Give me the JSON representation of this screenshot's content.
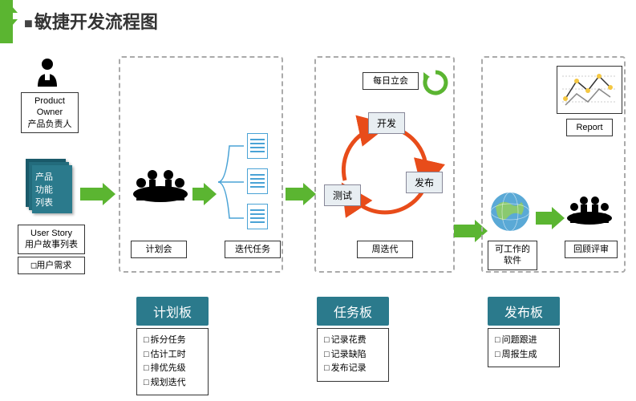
{
  "title": "敏捷开发流程图",
  "colors": {
    "accent": "#2b7a8c",
    "arrow": "#5bb531",
    "cycle": "#e84c1a",
    "dashed_border": "#aaaaaa",
    "text": "#333333"
  },
  "column1": {
    "product_owner": {
      "line1": "Product Owner",
      "line2": "产品负责人"
    },
    "backlog_card": {
      "line1": "产品",
      "line2": "功能",
      "line3": "列表"
    },
    "user_story": {
      "line1": "User Story",
      "line2": "用户故事列表"
    },
    "user_req": "用户需求"
  },
  "stage1": {
    "meeting_label": "计划会",
    "tasks_label": "迭代任务",
    "panel": {
      "header": "计划板",
      "items": [
        "拆分任务",
        "估计工时",
        "排优先级",
        "规划迭代"
      ]
    }
  },
  "stage2": {
    "daily_standup": "每日立会",
    "cycle": {
      "dev": "开发",
      "test": "测试",
      "release": "发布"
    },
    "iteration_label": "周迭代",
    "panel": {
      "header": "任务板",
      "items": [
        "记录花费",
        "记录缺陷",
        "发布记录"
      ]
    }
  },
  "stage3": {
    "working_sw": {
      "line1": "可工作的",
      "line2": "软件"
    },
    "review": "回顾评审",
    "report": "Report",
    "panel": {
      "header": "发布板",
      "items": [
        "问题跟进",
        "周报生成"
      ]
    }
  }
}
